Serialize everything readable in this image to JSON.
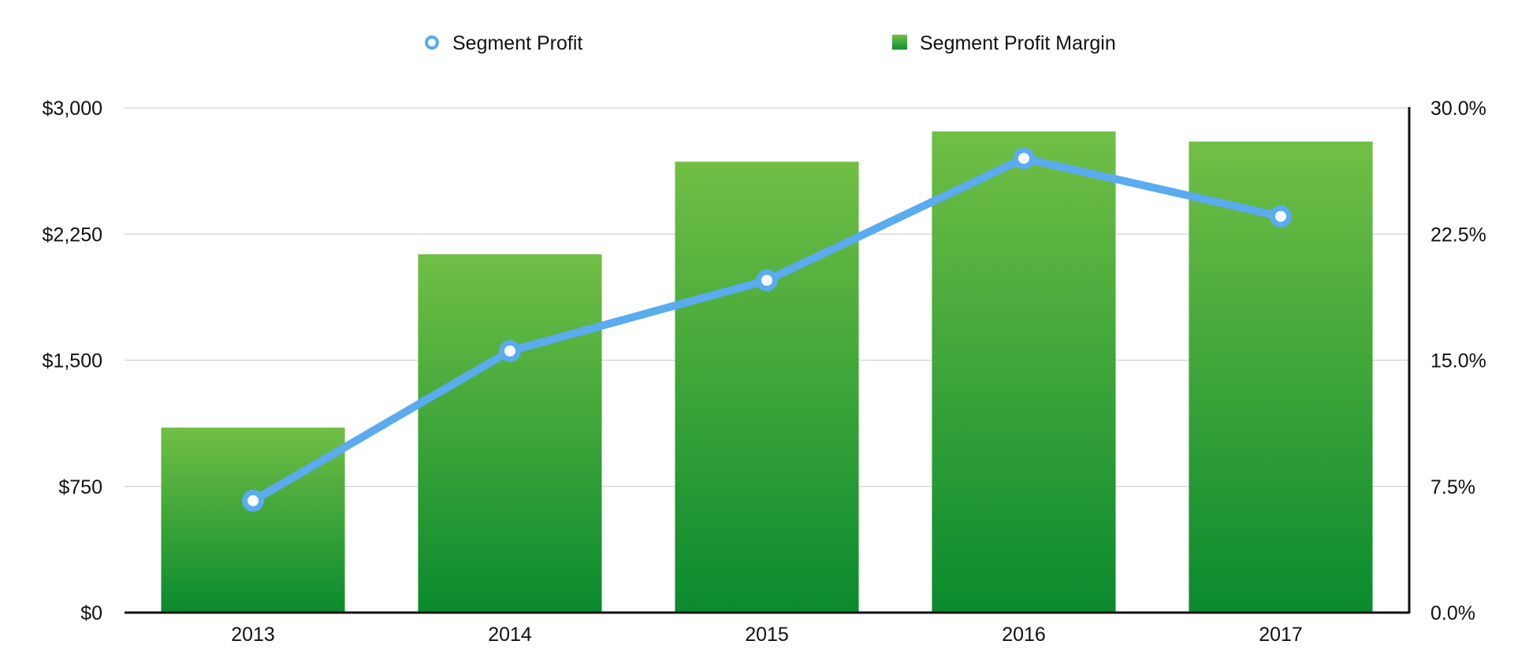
{
  "chart_data": {
    "type": "bar",
    "categories": [
      "2013",
      "2014",
      "2015",
      "2016",
      "2017"
    ],
    "series": [
      {
        "name": "Segment Profit Margin",
        "type": "bar",
        "axis": "right",
        "values": [
          11.0,
          21.3,
          26.8,
          28.6,
          28.0
        ],
        "color": "#3aa33a"
      },
      {
        "name": "Segment Profit",
        "type": "line",
        "axis": "left",
        "values": [
          665,
          1555,
          1975,
          2700,
          2355
        ],
        "color": "#5aabf0"
      }
    ],
    "left_axis": {
      "ylim": [
        0,
        3000
      ],
      "ticks": [
        0,
        750,
        1500,
        2250,
        3000
      ],
      "tick_labels": [
        "$0",
        "$750",
        "$1,500",
        "$2,250",
        "$3,000"
      ]
    },
    "right_axis": {
      "ylim": [
        0,
        30
      ],
      "ticks": [
        0,
        7.5,
        15,
        22.5,
        30
      ],
      "tick_labels": [
        "0.0%",
        "7.5%",
        "15.0%",
        "22.5%",
        "30.0%"
      ]
    },
    "title": "",
    "xlabel": "",
    "ylabel": "",
    "grid": true,
    "legend": {
      "placement": "top-center",
      "items": [
        {
          "label": "Segment Profit",
          "marker": "circle",
          "color": "#5aabf0"
        },
        {
          "label": "Segment Profit Margin",
          "marker": "square",
          "color": "#3aa33a"
        }
      ]
    }
  }
}
